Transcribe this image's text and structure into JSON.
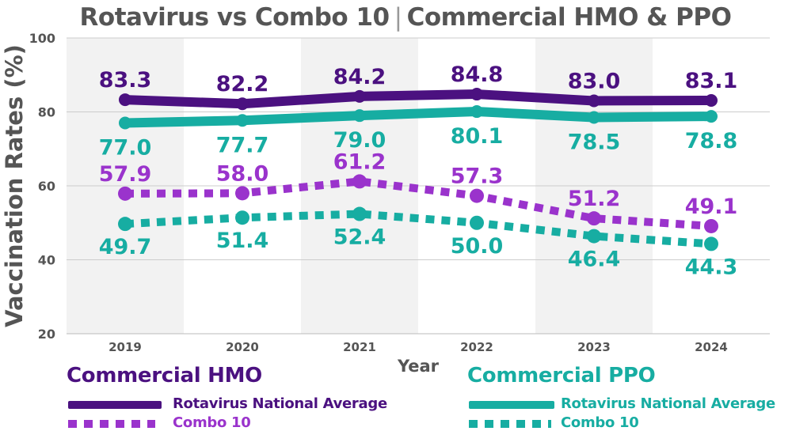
{
  "header": {
    "title_left": "Rotavirus vs Combo 10",
    "title_sep": "|",
    "title_right": "Commercial HMO & PPO"
  },
  "colors": {
    "hmo_solid": "#4b1180",
    "hmo_dotted": "#9a33cc",
    "ppo": "#17ada2",
    "title": "#555555",
    "axis_text": "#555555",
    "band": "#f2f2f2",
    "grid": "#cccccc"
  },
  "legend": {
    "hmo": {
      "heading": "Commercial HMO",
      "rota_label": "Rotavirus National Average",
      "combo_label": "Combo 10"
    },
    "ppo": {
      "heading": "Commercial PPO",
      "rota_label": "Rotavirus National Average",
      "combo_label": "Combo 10"
    }
  },
  "chart_data": {
    "type": "line",
    "title": "Rotavirus vs Combo 10 | Commercial HMO & PPO",
    "xlabel": "Year",
    "ylabel": "Vaccination Rates (%)",
    "categories": [
      "2019",
      "2020",
      "2021",
      "2022",
      "2023",
      "2024"
    ],
    "ylim": [
      20,
      100
    ],
    "yticks": [
      20,
      40,
      60,
      80,
      100
    ],
    "grid": true,
    "series": [
      {
        "name": "Rotavirus National Average",
        "group": "Commercial HMO",
        "style": "solid",
        "values": [
          83.3,
          82.2,
          84.2,
          84.8,
          83.0,
          83.1
        ],
        "labels": [
          "83.3",
          "82.2",
          "84.2",
          "84.8",
          "83.0",
          "83.1"
        ]
      },
      {
        "name": "Rotavirus National Average",
        "group": "Commercial PPO",
        "style": "solid",
        "values": [
          77.0,
          77.7,
          79.0,
          80.1,
          78.5,
          78.8
        ],
        "labels": [
          "77.0",
          "77.7",
          "79.0",
          "80.1",
          "78.5",
          "78.8"
        ]
      },
      {
        "name": "Combo 10",
        "group": "Commercial HMO",
        "style": "dotted",
        "values": [
          57.9,
          58.0,
          61.2,
          57.3,
          51.2,
          49.1
        ],
        "labels": [
          "57.9",
          "58.0",
          "61.2",
          "57.3",
          "51.2",
          "49.1"
        ]
      },
      {
        "name": "Combo 10",
        "group": "Commercial PPO",
        "style": "dotted",
        "values": [
          49.7,
          51.4,
          52.4,
          50.0,
          46.4,
          44.3
        ],
        "labels": [
          "49.7",
          "51.4",
          "52.4",
          "50.0",
          "46.4",
          "44.3"
        ]
      }
    ]
  }
}
